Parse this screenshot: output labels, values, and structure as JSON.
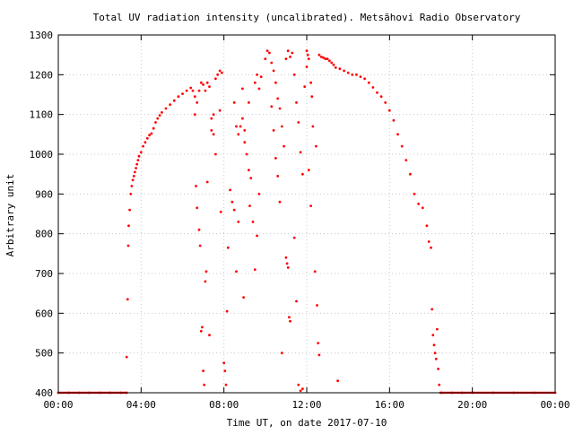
{
  "chart_data": {
    "type": "scatter",
    "title": "Total UV radiation intensity (uncalibrated). Metsähovi Radio Observatory",
    "xlabel": "Time UT, on date 2017-07-10",
    "ylabel": "Arbitrary unit",
    "x_unit": "hours UT",
    "xlim": [
      0,
      24
    ],
    "ylim": [
      400,
      1300
    ],
    "x_ticks": [
      0,
      4,
      8,
      12,
      16,
      20,
      24
    ],
    "x_tick_labels": [
      "00:00",
      "04:00",
      "08:00",
      "12:00",
      "16:00",
      "20:00",
      "00:00"
    ],
    "y_ticks": [
      400,
      500,
      600,
      700,
      800,
      900,
      1000,
      1100,
      1200,
      1300
    ],
    "y_tick_labels": [
      "400",
      "500",
      "600",
      "700",
      "800",
      "900",
      "1000",
      "1100",
      "1200",
      "1300"
    ],
    "grid": true,
    "legend": "none",
    "marker_color": "#ff0000",
    "series": [
      {
        "points": [
          [
            0.0,
            400
          ],
          [
            0.5,
            400
          ],
          [
            1.0,
            400
          ],
          [
            1.5,
            400
          ],
          [
            2.0,
            400
          ],
          [
            2.5,
            400
          ],
          [
            3.0,
            400
          ],
          [
            3.3,
            400
          ],
          [
            3.3,
            490
          ],
          [
            3.35,
            635
          ],
          [
            3.38,
            770
          ],
          [
            3.4,
            820
          ],
          [
            3.45,
            860
          ],
          [
            3.5,
            900
          ],
          [
            3.55,
            920
          ],
          [
            3.6,
            935
          ],
          [
            3.65,
            945
          ],
          [
            3.7,
            955
          ],
          [
            3.75,
            965
          ],
          [
            3.8,
            975
          ],
          [
            3.85,
            985
          ],
          [
            3.9,
            995
          ],
          [
            4.0,
            1005
          ],
          [
            4.1,
            1020
          ],
          [
            4.2,
            1030
          ],
          [
            4.3,
            1040
          ],
          [
            4.4,
            1048
          ],
          [
            4.5,
            1052
          ],
          [
            4.6,
            1065
          ],
          [
            4.7,
            1080
          ],
          [
            4.8,
            1090
          ],
          [
            4.9,
            1098
          ],
          [
            5.0,
            1105
          ],
          [
            5.2,
            1115
          ],
          [
            5.4,
            1125
          ],
          [
            5.6,
            1135
          ],
          [
            5.8,
            1145
          ],
          [
            6.0,
            1152
          ],
          [
            6.2,
            1160
          ],
          [
            6.4,
            1167
          ],
          [
            6.5,
            1160
          ],
          [
            6.6,
            1145
          ],
          [
            6.7,
            1130
          ],
          [
            6.8,
            1160
          ],
          [
            6.9,
            1180
          ],
          [
            7.0,
            1175
          ],
          [
            7.1,
            1160
          ],
          [
            7.2,
            1180
          ],
          [
            7.3,
            1170
          ],
          [
            7.4,
            1060
          ],
          [
            7.5,
            1100
          ],
          [
            7.6,
            1190
          ],
          [
            7.7,
            1200
          ],
          [
            7.8,
            1210
          ],
          [
            7.9,
            1205
          ],
          [
            6.6,
            1100
          ],
          [
            6.65,
            920
          ],
          [
            6.7,
            865
          ],
          [
            6.8,
            810
          ],
          [
            6.85,
            770
          ],
          [
            6.9,
            555
          ],
          [
            6.95,
            565
          ],
          [
            7.0,
            455
          ],
          [
            7.05,
            420
          ],
          [
            7.1,
            680
          ],
          [
            7.15,
            705
          ],
          [
            7.2,
            930
          ],
          [
            7.3,
            545
          ],
          [
            7.4,
            1090
          ],
          [
            7.5,
            1050
          ],
          [
            7.6,
            1000
          ],
          [
            7.8,
            1110
          ],
          [
            7.85,
            855
          ],
          [
            8.0,
            475
          ],
          [
            8.05,
            455
          ],
          [
            8.1,
            420
          ],
          [
            8.15,
            605
          ],
          [
            8.2,
            765
          ],
          [
            8.3,
            910
          ],
          [
            8.4,
            880
          ],
          [
            8.5,
            860
          ],
          [
            8.6,
            705
          ],
          [
            8.7,
            830
          ],
          [
            8.8,
            1070
          ],
          [
            8.9,
            1090
          ],
          [
            9.0,
            1060
          ],
          [
            9.1,
            1000
          ],
          [
            8.9,
            1165
          ],
          [
            9.2,
            1130
          ],
          [
            9.3,
            940
          ],
          [
            9.4,
            830
          ],
          [
            9.5,
            1180
          ],
          [
            9.6,
            1200
          ],
          [
            9.7,
            1165
          ],
          [
            9.8,
            1195
          ],
          [
            9.2,
            960
          ],
          [
            9.25,
            870
          ],
          [
            9.0,
            1030
          ],
          [
            8.5,
            1130
          ],
          [
            8.6,
            1070
          ],
          [
            8.7,
            1050
          ],
          [
            8.95,
            640
          ],
          [
            9.5,
            710
          ],
          [
            9.6,
            795
          ],
          [
            9.7,
            900
          ],
          [
            10.0,
            1240
          ],
          [
            10.1,
            1260
          ],
          [
            10.2,
            1255
          ],
          [
            10.3,
            1230
          ],
          [
            10.4,
            1210
          ],
          [
            10.5,
            1180
          ],
          [
            10.6,
            1140
          ],
          [
            10.7,
            1115
          ],
          [
            10.8,
            1070
          ],
          [
            10.9,
            1020
          ],
          [
            11.0,
            1240
          ],
          [
            11.1,
            1260
          ],
          [
            11.2,
            1245
          ],
          [
            11.3,
            1255
          ],
          [
            11.4,
            1200
          ],
          [
            11.5,
            1130
          ],
          [
            11.6,
            1080
          ],
          [
            11.7,
            1005
          ],
          [
            11.8,
            950
          ],
          [
            10.3,
            1120
          ],
          [
            10.4,
            1060
          ],
          [
            10.5,
            990
          ],
          [
            10.6,
            945
          ],
          [
            10.7,
            880
          ],
          [
            10.8,
            500
          ],
          [
            11.0,
            740
          ],
          [
            11.05,
            725
          ],
          [
            11.1,
            715
          ],
          [
            11.15,
            590
          ],
          [
            11.2,
            580
          ],
          [
            11.4,
            790
          ],
          [
            11.5,
            630
          ],
          [
            11.6,
            420
          ],
          [
            11.7,
            405
          ],
          [
            11.8,
            410
          ],
          [
            11.9,
            1170
          ],
          [
            12.0,
            1260
          ],
          [
            12.05,
            1250
          ],
          [
            12.1,
            1240
          ],
          [
            12.2,
            1180
          ],
          [
            12.25,
            1145
          ],
          [
            12.3,
            1070
          ],
          [
            12.0,
            1220
          ],
          [
            12.1,
            960
          ],
          [
            12.2,
            870
          ],
          [
            12.4,
            705
          ],
          [
            12.45,
            1020
          ],
          [
            12.5,
            620
          ],
          [
            12.55,
            525
          ],
          [
            12.6,
            495
          ],
          [
            12.6,
            1250
          ],
          [
            12.7,
            1245
          ],
          [
            12.8,
            1243
          ],
          [
            12.9,
            1240
          ],
          [
            13.0,
            1240
          ],
          [
            13.1,
            1235
          ],
          [
            13.2,
            1230
          ],
          [
            13.3,
            1225
          ],
          [
            13.4,
            1218
          ],
          [
            13.5,
            430
          ],
          [
            13.6,
            1215
          ],
          [
            13.8,
            1210
          ],
          [
            14.0,
            1205
          ],
          [
            14.2,
            1200
          ],
          [
            14.4,
            1200
          ],
          [
            14.6,
            1195
          ],
          [
            14.8,
            1190
          ],
          [
            15.0,
            1180
          ],
          [
            15.2,
            1168
          ],
          [
            15.4,
            1155
          ],
          [
            15.6,
            1145
          ],
          [
            15.8,
            1130
          ],
          [
            16.0,
            1110
          ],
          [
            16.2,
            1085
          ],
          [
            16.4,
            1050
          ],
          [
            16.6,
            1020
          ],
          [
            16.8,
            985
          ],
          [
            17.0,
            950
          ],
          [
            17.2,
            900
          ],
          [
            17.4,
            875
          ],
          [
            17.6,
            865
          ],
          [
            17.8,
            820
          ],
          [
            17.9,
            780
          ],
          [
            18.0,
            765
          ],
          [
            18.05,
            610
          ],
          [
            18.1,
            545
          ],
          [
            18.15,
            520
          ],
          [
            18.2,
            500
          ],
          [
            18.25,
            485
          ],
          [
            18.3,
            560
          ],
          [
            18.35,
            460
          ],
          [
            18.4,
            420
          ],
          [
            18.5,
            400
          ],
          [
            19.0,
            400
          ],
          [
            19.5,
            400
          ],
          [
            20.0,
            400
          ],
          [
            21.0,
            400
          ],
          [
            22.0,
            400
          ],
          [
            23.0,
            400
          ],
          [
            24.0,
            400
          ]
        ]
      }
    ]
  }
}
